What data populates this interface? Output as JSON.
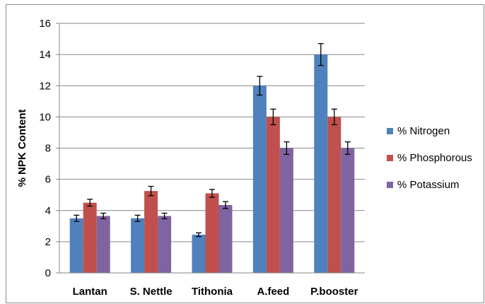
{
  "chart_data": {
    "type": "bar",
    "title": "",
    "xlabel": "",
    "ylabel": "% NPK Content",
    "ylim": [
      0,
      16
    ],
    "yticks": [
      "0",
      "2",
      "4",
      "6",
      "8",
      "10",
      "12",
      "14",
      "16"
    ],
    "grid": true,
    "legend_position": "right",
    "categories": [
      "Lantan",
      "S. Nettle",
      "Tithonia",
      "A.feed",
      "P.booster"
    ],
    "series": [
      {
        "name": "% Nitrogen",
        "color": "#4F81BD",
        "values": [
          3.5,
          3.5,
          2.45,
          12.0,
          14.0
        ],
        "errors": [
          0.2,
          0.2,
          0.12,
          0.6,
          0.7
        ]
      },
      {
        "name": "% Phosphorous",
        "color": "#C0504D",
        "values": [
          4.5,
          5.25,
          5.1,
          10.0,
          10.0
        ],
        "errors": [
          0.22,
          0.3,
          0.25,
          0.5,
          0.5
        ]
      },
      {
        "name": "% Potassium",
        "color": "#8064A2",
        "values": [
          3.65,
          3.65,
          4.35,
          8.0,
          8.0
        ],
        "errors": [
          0.18,
          0.18,
          0.22,
          0.4,
          0.4
        ]
      }
    ]
  }
}
